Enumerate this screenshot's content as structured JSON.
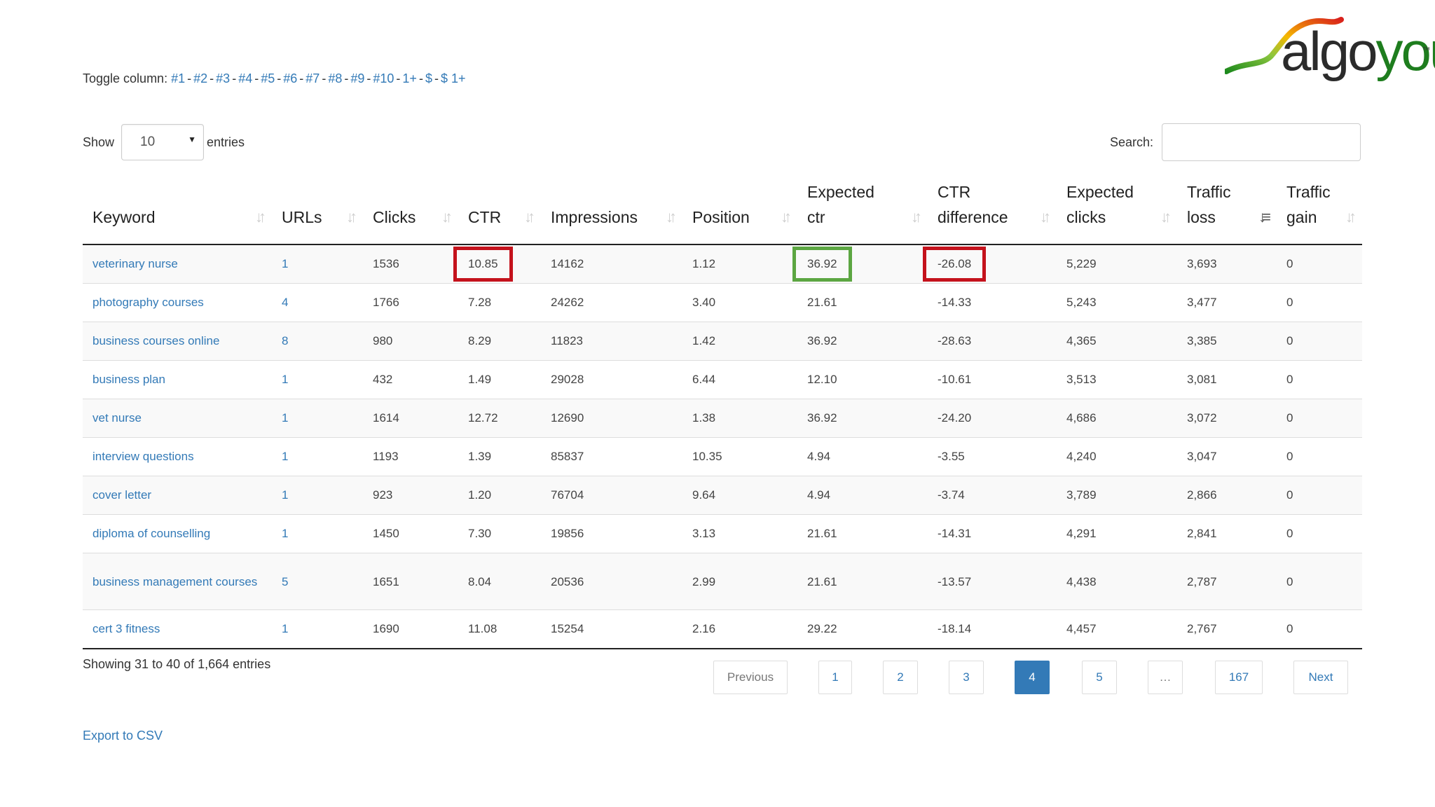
{
  "logo": {
    "text_main": "algo",
    "text_accent": "you",
    "trademark": "™",
    "colors": {
      "swoosh_start": "#1d8a1d",
      "swoosh_mid": "#f5b800",
      "swoosh_end": "#d9211c"
    }
  },
  "toggle": {
    "label": "Toggle column:",
    "links": [
      "#1",
      "#2",
      "#3",
      "#4",
      "#5",
      "#6",
      "#7",
      "#8",
      "#9",
      "#10",
      "1+",
      "$",
      "$ 1+"
    ]
  },
  "length": {
    "show_label": "Show",
    "value": "10",
    "entries_label": "entries"
  },
  "search": {
    "label": "Search:",
    "value": ""
  },
  "table": {
    "columns": [
      {
        "label_line1": "",
        "label_line2": "Keyword"
      },
      {
        "label_line1": "",
        "label_line2": "URLs"
      },
      {
        "label_line1": "",
        "label_line2": "Clicks"
      },
      {
        "label_line1": "",
        "label_line2": "CTR"
      },
      {
        "label_line1": "",
        "label_line2": "Impressions"
      },
      {
        "label_line1": "",
        "label_line2": "Position"
      },
      {
        "label_line1": "Expected",
        "label_line2": "ctr"
      },
      {
        "label_line1": "CTR",
        "label_line2": "difference"
      },
      {
        "label_line1": "Expected",
        "label_line2": "clicks"
      },
      {
        "label_line1": "Traffic",
        "label_line2": "loss"
      },
      {
        "label_line1": "Traffic",
        "label_line2": "gain"
      }
    ],
    "sorted_column": "Traffic loss",
    "rows": [
      [
        "veterinary nurse",
        "1",
        "1536",
        "10.85",
        "14162",
        "1.12",
        "36.92",
        "-26.08",
        "5,229",
        "3,693",
        "0"
      ],
      [
        "photography courses",
        "4",
        "1766",
        "7.28",
        "24262",
        "3.40",
        "21.61",
        "-14.33",
        "5,243",
        "3,477",
        "0"
      ],
      [
        "business courses online",
        "8",
        "980",
        "8.29",
        "11823",
        "1.42",
        "36.92",
        "-28.63",
        "4,365",
        "3,385",
        "0"
      ],
      [
        "business plan",
        "1",
        "432",
        "1.49",
        "29028",
        "6.44",
        "12.10",
        "-10.61",
        "3,513",
        "3,081",
        "0"
      ],
      [
        "vet nurse",
        "1",
        "1614",
        "12.72",
        "12690",
        "1.38",
        "36.92",
        "-24.20",
        "4,686",
        "3,072",
        "0"
      ],
      [
        "interview questions",
        "1",
        "1193",
        "1.39",
        "85837",
        "10.35",
        "4.94",
        "-3.55",
        "4,240",
        "3,047",
        "0"
      ],
      [
        "cover letter",
        "1",
        "923",
        "1.20",
        "76704",
        "9.64",
        "4.94",
        "-3.74",
        "3,789",
        "2,866",
        "0"
      ],
      [
        "diploma of counselling",
        "1",
        "1450",
        "7.30",
        "19856",
        "3.13",
        "21.61",
        "-14.31",
        "4,291",
        "2,841",
        "0"
      ],
      [
        "business management courses",
        "5",
        "1651",
        "8.04",
        "20536",
        "2.99",
        "21.61",
        "-13.57",
        "4,438",
        "2,787",
        "0"
      ],
      [
        "cert 3 fitness",
        "1",
        "1690",
        "11.08",
        "15254",
        "2.16",
        "29.22",
        "-18.14",
        "4,457",
        "2,767",
        "0"
      ]
    ],
    "highlight_colors": {
      "red": "#c4121c",
      "green": "#5ca642"
    }
  },
  "info": "Showing 31 to 40 of 1,664 entries",
  "pagination": {
    "previous": "Previous",
    "pages": [
      "1",
      "2",
      "3",
      "4",
      "5",
      "…",
      "167"
    ],
    "current": "4",
    "next": "Next"
  },
  "export": "Export to CSV",
  "colors": {
    "link": "#337ab7",
    "active_page": "#337ab7"
  }
}
